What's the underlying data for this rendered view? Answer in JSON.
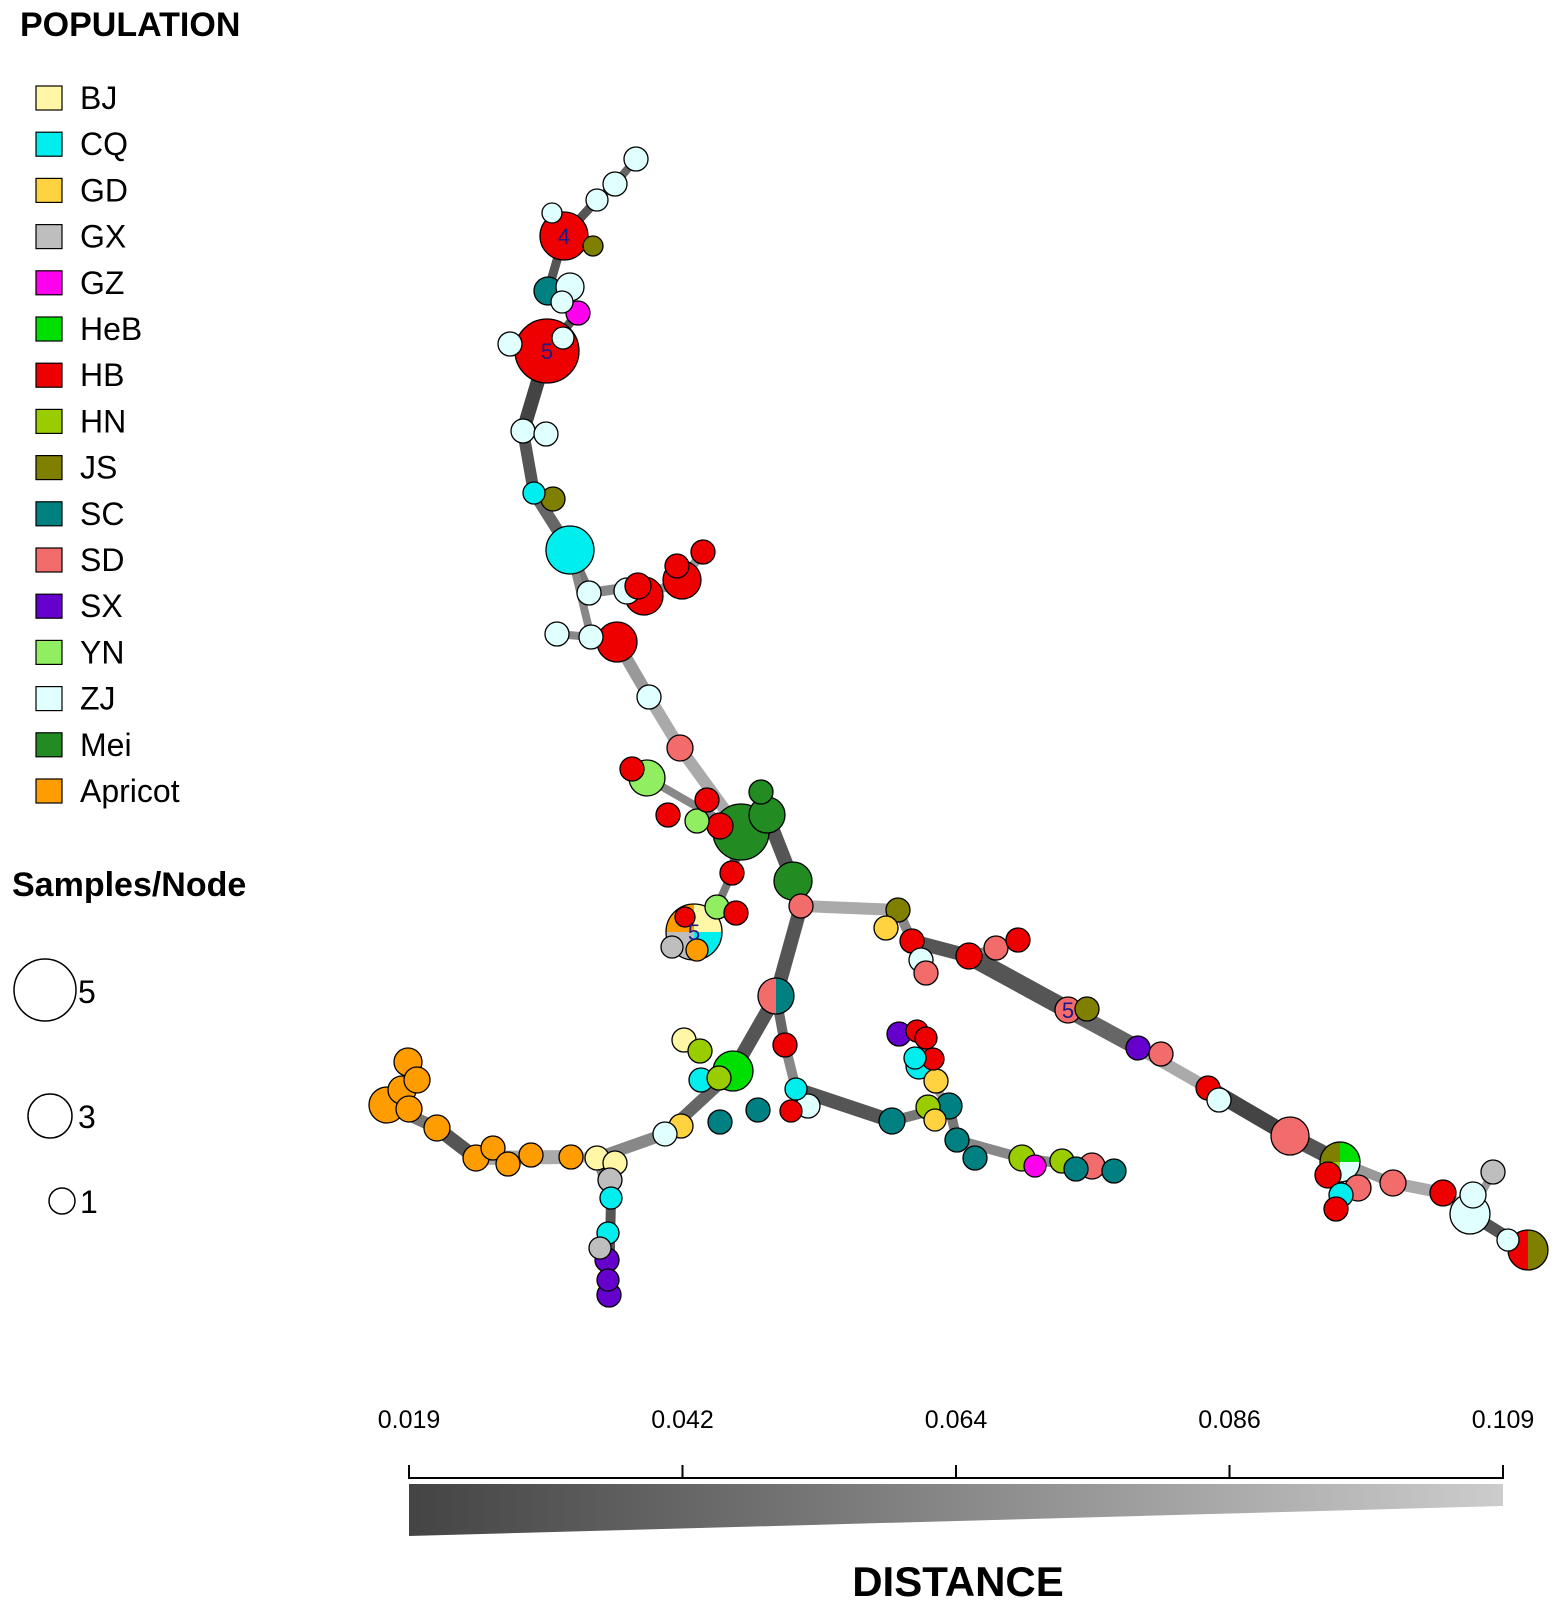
{
  "legend": {
    "title": "POPULATION",
    "items": [
      {
        "label": "BJ",
        "color": "#fff6a6"
      },
      {
        "label": "CQ",
        "color": "#00eeee"
      },
      {
        "label": "GD",
        "color": "#ffd23f"
      },
      {
        "label": "GX",
        "color": "#bebebe"
      },
      {
        "label": "GZ",
        "color": "#ff00ee"
      },
      {
        "label": "HeB",
        "color": "#00e000"
      },
      {
        "label": "HB",
        "color": "#ee0000"
      },
      {
        "label": "HN",
        "color": "#9acd00"
      },
      {
        "label": "JS",
        "color": "#808000"
      },
      {
        "label": "SC",
        "color": "#008080"
      },
      {
        "label": "SD",
        "color": "#f36c6c"
      },
      {
        "label": "SX",
        "color": "#6600cc"
      },
      {
        "label": "YN",
        "color": "#90ee60"
      },
      {
        "label": "ZJ",
        "color": "#e0ffff"
      },
      {
        "label": "Mei",
        "color": "#228b22"
      },
      {
        "label": "Apricot",
        "color": "#ff9d00"
      }
    ]
  },
  "size_legend": {
    "title": "Samples/Node",
    "items": [
      {
        "label": "5",
        "samples": 5
      },
      {
        "label": "3",
        "samples": 3
      },
      {
        "label": "1",
        "samples": 1
      }
    ]
  },
  "distance_scale": {
    "title": "DISTANCE",
    "ticks": [
      "0.019",
      "0.042",
      "0.064",
      "0.086",
      "0.109"
    ],
    "gradient": [
      "#444444",
      "#cccccc"
    ]
  },
  "node_labels": [
    {
      "text": "4",
      "node": "n4"
    },
    {
      "text": "5",
      "node": "n5"
    },
    {
      "text": "5",
      "node": "n46"
    },
    {
      "text": "5",
      "node": "n56"
    }
  ]
}
